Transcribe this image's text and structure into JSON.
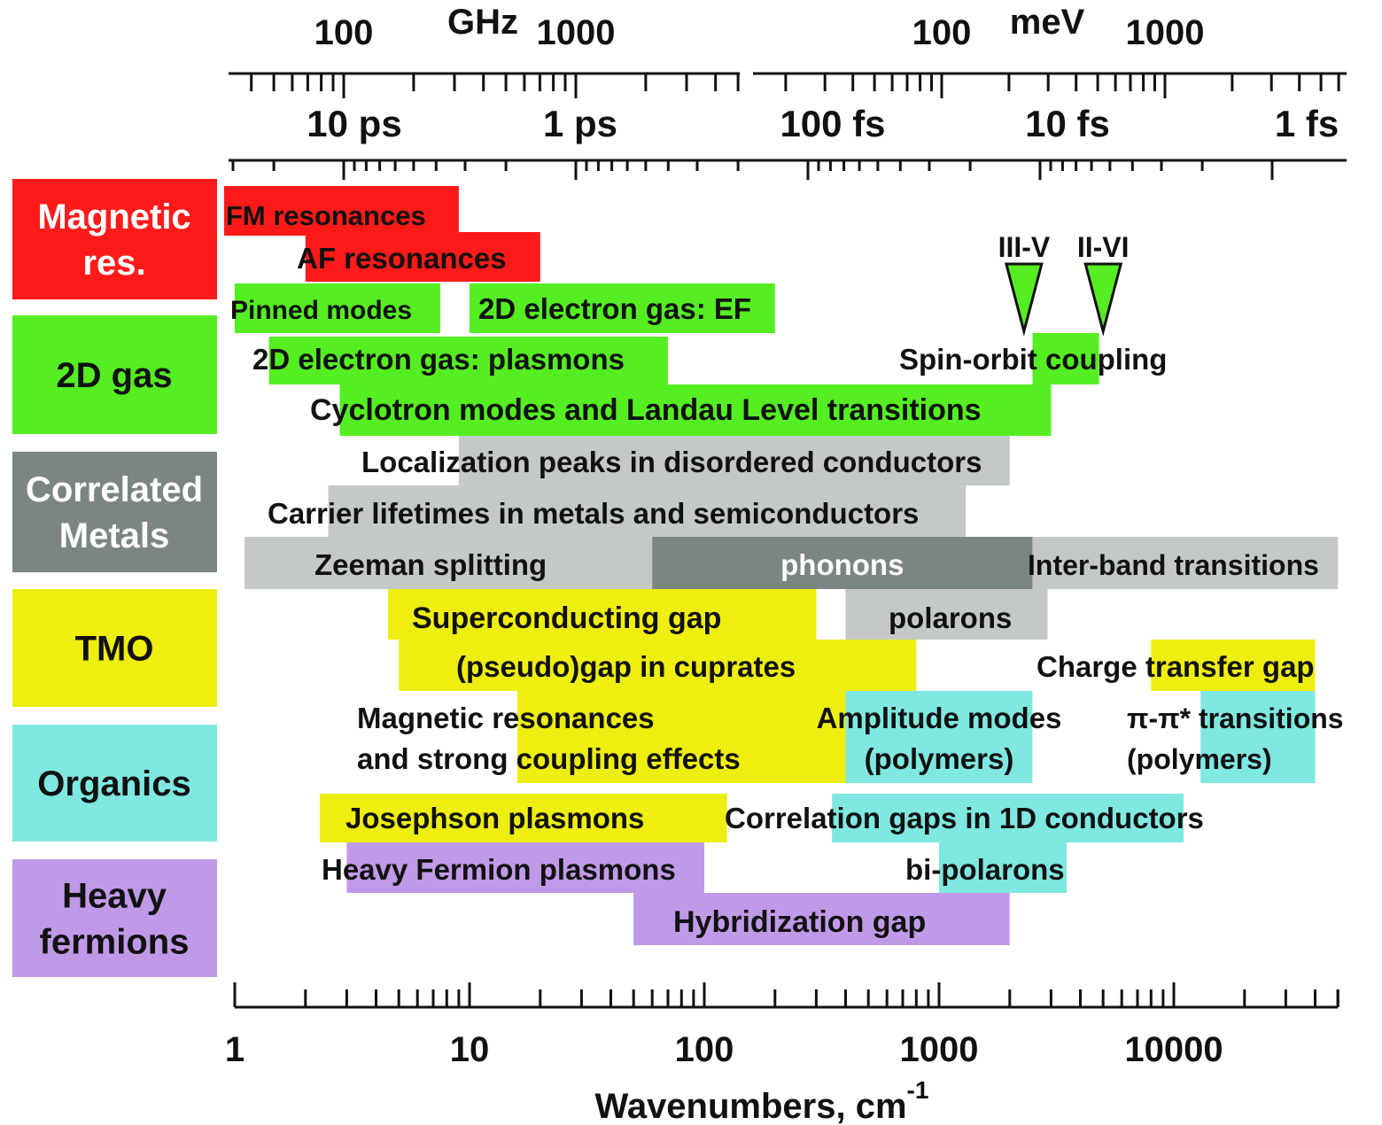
{
  "chart_data": {
    "type": "bar",
    "orientation": "horizontal-ranges",
    "xscale": "log",
    "xlim": [
      1,
      50000
    ],
    "xlabel": "Wavenumbers, cm",
    "xlabel_sup": "-1",
    "x_tick_labels": [
      "1",
      "10",
      "100",
      "1000",
      "10000"
    ],
    "x_tick_values": [
      1,
      10,
      100,
      1000,
      10000
    ],
    "top_axes": [
      {
        "unit": "GHz",
        "tick_labels": [
          "100",
          "1000"
        ],
        "tick_values": [
          100,
          1000
        ]
      },
      {
        "unit": "meV",
        "tick_labels": [
          "100",
          "1000"
        ],
        "tick_values": [
          100,
          1000
        ]
      },
      {
        "unit": "",
        "tick_labels": [
          "10 ps",
          "1 ps",
          "100 fs",
          "10 fs",
          "1 fs"
        ]
      }
    ],
    "categories": [
      {
        "name": "Magnetic res.",
        "lines": [
          "Magnetic",
          "res."
        ],
        "color": "#ff1a1a"
      },
      {
        "name": "2D gas",
        "lines": [
          "2D gas"
        ],
        "color": "#55ee22"
      },
      {
        "name": "Correlated Metals",
        "lines": [
          "Correlated",
          "Metals"
        ],
        "color": "#7a8584"
      },
      {
        "name": "TMO",
        "lines": [
          "TMO"
        ],
        "color": "#eeee11"
      },
      {
        "name": "Organics",
        "lines": [
          "Organics"
        ],
        "color": "#7fe8e0"
      },
      {
        "name": "Heavy fermions",
        "lines": [
          "Heavy",
          "fermions"
        ],
        "color": "#c09ae8"
      }
    ],
    "colors": {
      "magnetic": "#ff1a1a",
      "gas": "#55ee22",
      "metals_light": "#c4c9c8",
      "metals_dark": "#7a8584",
      "tmo": "#eeee11",
      "organics": "#7fe8e0",
      "heavy": "#c09ae8"
    },
    "bands": [
      {
        "label": "FM resonances",
        "category": "Magnetic res.",
        "color": "#ff1a1a",
        "x": [
          0.9,
          9
        ]
      },
      {
        "label": "AF resonances",
        "category": "Magnetic res.",
        "color": "#ff1a1a",
        "x": [
          2,
          20
        ]
      },
      {
        "label": "Pinned modes",
        "category": "2D gas",
        "color": "#55ee22",
        "x": [
          1,
          7.5
        ]
      },
      {
        "label": "2D electron gas: EF",
        "category": "2D gas",
        "color": "#55ee22",
        "x": [
          10,
          200
        ]
      },
      {
        "label": "2D electron gas: plasmons",
        "category": "2D gas",
        "color": "#55ee22",
        "x": [
          1.4,
          70
        ]
      },
      {
        "label": "Spin-orbit coupling",
        "category": "2D gas",
        "color": "#55ee22",
        "x": [
          2500,
          4800
        ]
      },
      {
        "label": "Cyclotron modes and Landau Level transitions",
        "category": "2D gas",
        "color": "#55ee22",
        "x": [
          2.8,
          3000
        ]
      },
      {
        "label": "Localization peaks in disordered conductors",
        "category": "Correlated Metals",
        "color": "#c4c9c8",
        "x": [
          9,
          2000
        ]
      },
      {
        "label": "Carrier lifetimes in metals and semiconductors",
        "category": "Correlated Metals",
        "color": "#c4c9c8",
        "x": [
          2.5,
          1300
        ]
      },
      {
        "label": "Zeeman splitting",
        "category": "Correlated Metals",
        "color": "#c4c9c8",
        "x": [
          1.1,
          60
        ]
      },
      {
        "label": "phonons",
        "category": "Correlated Metals",
        "color": "#7a8584",
        "x": [
          60,
          2500
        ]
      },
      {
        "label": "Inter-band transitions",
        "category": "Correlated Metals",
        "color": "#c4c9c8",
        "x": [
          2500,
          50000
        ]
      },
      {
        "label": "Superconducting gap",
        "category": "TMO",
        "color": "#eeee11",
        "x": [
          4.5,
          300
        ]
      },
      {
        "label": "polarons",
        "category": "Correlated Metals",
        "color": "#c4c9c8",
        "x": [
          400,
          2900
        ]
      },
      {
        "label": "(pseudo)gap in cuprates",
        "category": "TMO",
        "color": "#eeee11",
        "x": [
          5,
          800
        ]
      },
      {
        "label": "Charge transfer gap",
        "category": "TMO",
        "color": "#eeee11",
        "x": [
          8000,
          40000
        ]
      },
      {
        "label": "Magnetic resonances\nand strong coupling effects",
        "category": "TMO",
        "color": "#eeee11",
        "x": [
          16,
          400
        ]
      },
      {
        "label": "Amplitude modes\n(polymers)",
        "category": "Organics",
        "color": "#7fe8e0",
        "x": [
          400,
          2500
        ]
      },
      {
        "label": "π-π* transitions\n(polymers)",
        "category": "Organics",
        "color": "#7fe8e0",
        "x": [
          13000,
          40000
        ]
      },
      {
        "label": "Josephson plasmons",
        "category": "TMO",
        "color": "#eeee11",
        "x": [
          2.3,
          125
        ]
      },
      {
        "label": "Correlation gaps in 1D conductors",
        "category": "Organics",
        "color": "#7fe8e0",
        "x": [
          350,
          11000
        ]
      },
      {
        "label": "Heavy Fermion plasmons",
        "category": "Heavy fermions",
        "color": "#c09ae8",
        "x": [
          3,
          100
        ]
      },
      {
        "label": "bi-polarons",
        "category": "Organics",
        "color": "#7fe8e0",
        "x": [
          1000,
          3500
        ]
      },
      {
        "label": "Hybridization gap",
        "category": "Heavy fermions",
        "color": "#c09ae8",
        "x": [
          50,
          2000
        ]
      }
    ],
    "markers": [
      {
        "label": "III-V",
        "type": "triangle-down",
        "color": "#55ee22",
        "x": 2300
      },
      {
        "label": "II-VI",
        "type": "triangle-down",
        "color": "#55ee22",
        "x": 5000
      }
    ],
    "legend": "left",
    "grid": false
  }
}
